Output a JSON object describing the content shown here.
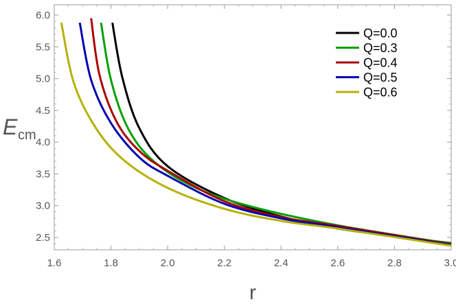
{
  "chart_data": {
    "type": "line",
    "title": "",
    "xlabel": "r",
    "ylabel": "E",
    "ylabel_sub": "cm",
    "xlim": [
      1.6,
      3.0
    ],
    "ylim": [
      2.35,
      6.0
    ],
    "xticks": [
      "1.6",
      "1.8",
      "2.0",
      "2.2",
      "2.4",
      "2.6",
      "2.8",
      "3.0"
    ],
    "yticks": [
      "2.5",
      "3.0",
      "3.5",
      "4.0",
      "4.5",
      "5.0",
      "5.5",
      "6.0"
    ],
    "legend_position": "top-right",
    "grid": false,
    "series": [
      {
        "name": "Q=0.0",
        "color": "#000000",
        "x": [
          1.805,
          1.84,
          1.9,
          2.0,
          2.2,
          2.4,
          2.6,
          2.8,
          3.0
        ],
        "y": [
          5.88,
          5.02,
          4.22,
          3.62,
          3.12,
          2.83,
          2.64,
          2.52,
          2.41
        ]
      },
      {
        "name": "Q=0.3",
        "color": "#00a000",
        "x": [
          1.765,
          1.8,
          1.86,
          1.95,
          2.1,
          2.3,
          2.6,
          3.0
        ],
        "y": [
          5.88,
          4.98,
          4.22,
          3.7,
          3.28,
          2.98,
          2.69,
          2.4
        ]
      },
      {
        "name": "Q=0.4",
        "color": "#aa0000",
        "x": [
          1.73,
          1.76,
          1.82,
          1.9,
          2.0,
          2.2,
          2.4,
          2.6,
          3.0
        ],
        "y": [
          5.95,
          5.05,
          4.32,
          3.86,
          3.55,
          3.07,
          2.82,
          2.68,
          2.39
        ]
      },
      {
        "name": "Q=0.5",
        "color": "#0000b0",
        "x": [
          1.69,
          1.73,
          1.8,
          1.9,
          2.0,
          2.2,
          2.4,
          2.6,
          3.0
        ],
        "y": [
          5.88,
          4.98,
          4.3,
          3.76,
          3.47,
          3.03,
          2.8,
          2.66,
          2.38
        ]
      },
      {
        "name": "Q=0.6",
        "color": "#b5b000",
        "x": [
          1.625,
          1.67,
          1.75,
          1.85,
          2.0,
          2.2,
          2.4,
          2.6,
          3.0
        ],
        "y": [
          5.88,
          4.92,
          4.2,
          3.7,
          3.28,
          2.95,
          2.76,
          2.64,
          2.37
        ]
      }
    ]
  }
}
